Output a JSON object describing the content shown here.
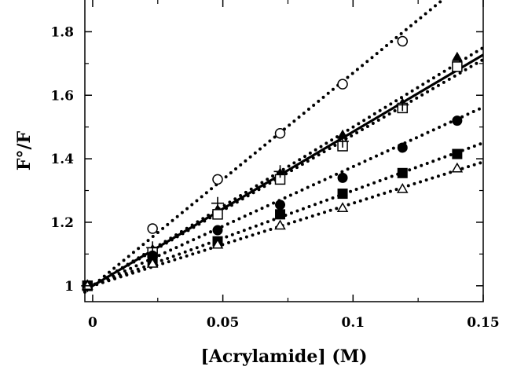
{
  "chart_data": {
    "type": "scatter",
    "title": "",
    "xlabel": "[Acrylamide] (M)",
    "ylabel": "F°/F",
    "xlim": [
      -0.003,
      0.15
    ],
    "ylim": [
      0.95,
      1.9
    ],
    "x_ticks": [
      0,
      0.05,
      0.1,
      0.15
    ],
    "x_tick_labels": [
      "0",
      "0.05",
      "0.1",
      "0.15"
    ],
    "y_ticks": [
      1,
      1.2,
      1.4,
      1.6,
      1.8
    ],
    "y_tick_labels": [
      "1",
      "1.2",
      "1.4",
      "1.6",
      "1.8"
    ],
    "grid": false,
    "legend": "none",
    "x": [
      -0.002,
      0.023,
      0.048,
      0.072,
      0.096,
      0.119,
      0.14
    ],
    "series": [
      {
        "marker": "open-circle",
        "values": [
          1.0,
          1.18,
          1.335,
          1.48,
          1.635,
          1.77,
          null
        ],
        "fit": {
          "style": "dotted",
          "intercept": 1.0,
          "slope": 6.7
        }
      },
      {
        "marker": "filled-triangle",
        "values": [
          1.0,
          1.115,
          1.24,
          1.355,
          1.475,
          1.575,
          1.72
        ],
        "fit": {
          "style": "dotted",
          "intercept": 1.0,
          "slope": 5.0
        }
      },
      {
        "marker": "open-square",
        "values": [
          1.0,
          1.105,
          1.225,
          1.335,
          1.44,
          1.56,
          1.69
        ],
        "fit": {
          "style": "dotted",
          "intercept": 1.0,
          "slope": 4.75
        }
      },
      {
        "marker": "plus",
        "values": [
          1.0,
          1.12,
          1.26,
          1.36,
          1.455,
          1.57,
          null
        ],
        "fit": {
          "style": "solid",
          "intercept": 1.0,
          "slope": 4.85
        }
      },
      {
        "marker": "filled-circle",
        "values": [
          1.0,
          1.095,
          1.175,
          1.255,
          1.34,
          1.435,
          1.52
        ],
        "fit": {
          "style": "dotted",
          "intercept": 1.0,
          "slope": 3.75
        }
      },
      {
        "marker": "filled-square",
        "values": [
          1.0,
          1.075,
          1.14,
          1.225,
          1.29,
          1.355,
          1.415
        ],
        "fit": {
          "style": "dotted",
          "intercept": 1.0,
          "slope": 3.0
        }
      },
      {
        "marker": "open-triangle",
        "values": [
          1.0,
          1.07,
          1.13,
          1.19,
          1.245,
          1.305,
          1.37
        ],
        "fit": {
          "style": "dotted",
          "intercept": 1.0,
          "slope": 2.6
        }
      }
    ]
  }
}
